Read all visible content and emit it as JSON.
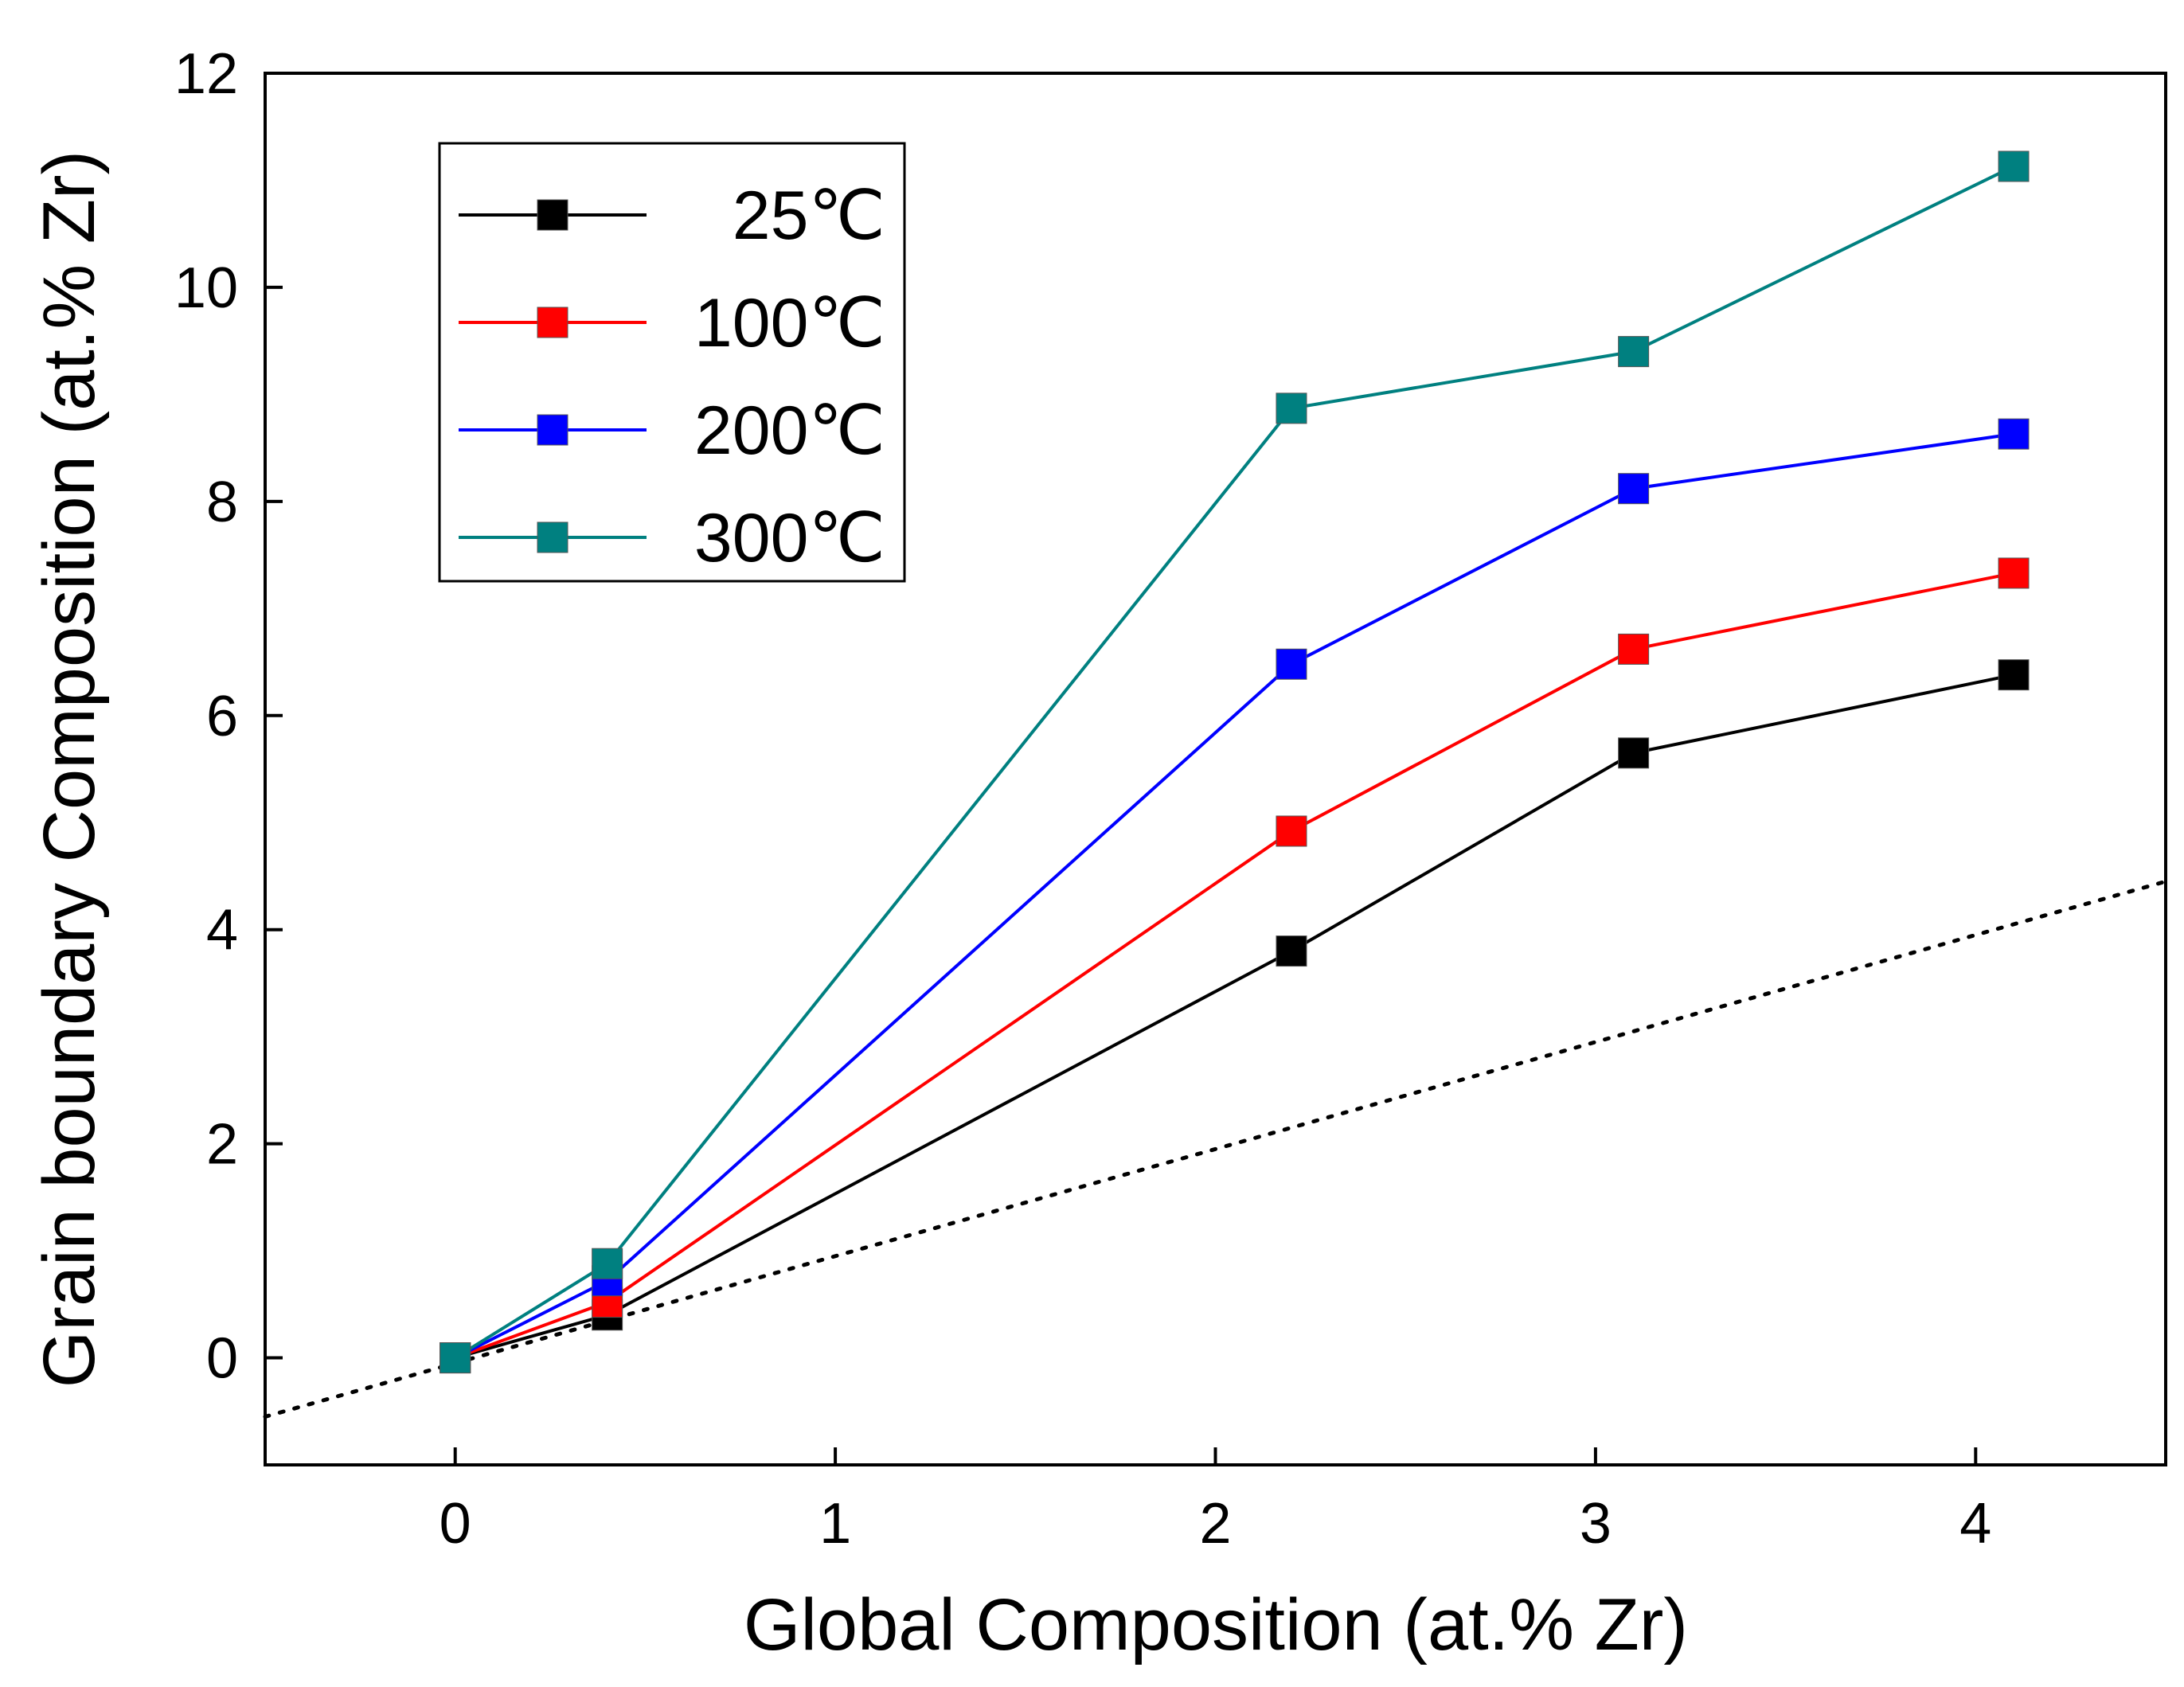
{
  "chart_data": {
    "type": "line",
    "title": "",
    "xlabel": "Global Composition (at.% Zr)",
    "ylabel": "Grain boundary Composition (at.% Zr)",
    "xlim": [
      -0.5,
      4.5
    ],
    "ylim": [
      -1,
      12
    ],
    "xticks": [
      0,
      1,
      2,
      3,
      4
    ],
    "yticks": [
      0,
      2,
      4,
      6,
      8,
      10,
      12
    ],
    "x": [
      0,
      0.4,
      2.2,
      3.1,
      4.1
    ],
    "series": [
      {
        "name": "25℃",
        "color": "#000000",
        "values": [
          0,
          0.4,
          3.8,
          5.65,
          6.38
        ]
      },
      {
        "name": "100℃",
        "color": "#ff0000",
        "values": [
          0,
          0.52,
          4.92,
          6.62,
          7.33
        ]
      },
      {
        "name": "200℃",
        "color": "#0000ff",
        "values": [
          0,
          0.72,
          6.48,
          8.12,
          8.63
        ]
      },
      {
        "name": "300℃",
        "color": "#008080",
        "values": [
          0,
          0.88,
          8.87,
          9.4,
          11.13
        ]
      }
    ],
    "reference_line": {
      "style": "dotted",
      "color": "#000000",
      "x": [
        -0.5,
        4.5
      ],
      "y": [
        -0.55,
        4.45
      ]
    },
    "legend_position": "top-left",
    "grid": false
  }
}
